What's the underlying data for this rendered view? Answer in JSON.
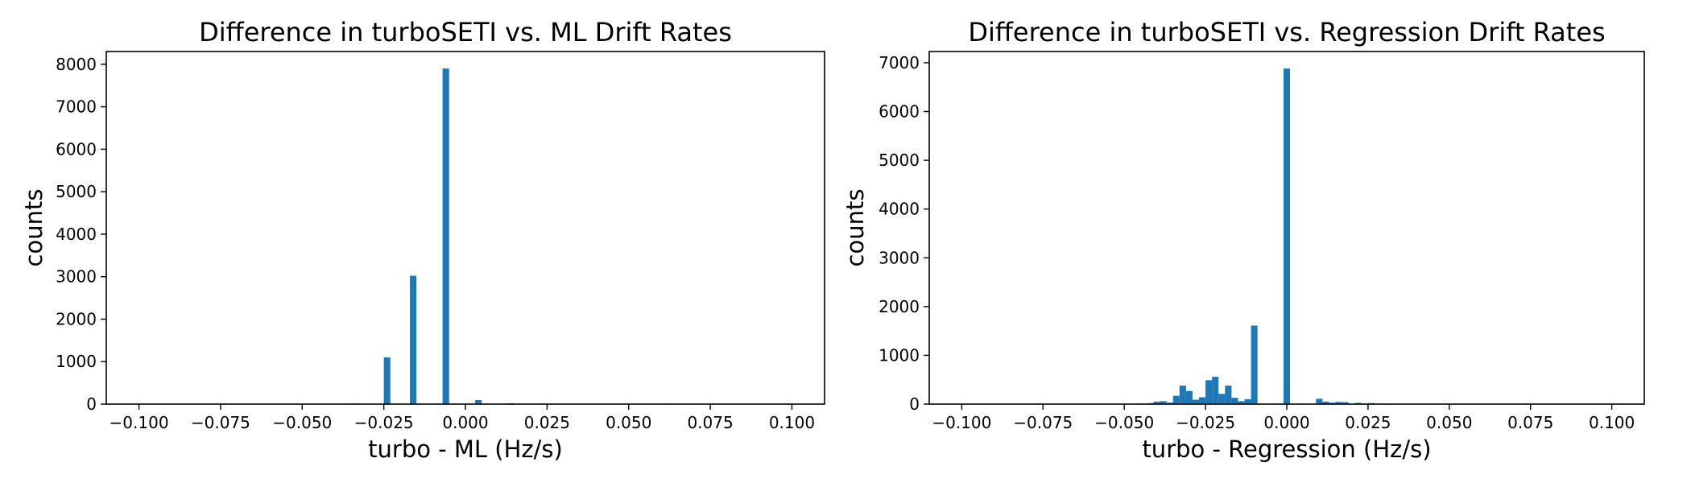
{
  "chart_data": [
    {
      "type": "bar",
      "title": "Difference in turboSETI vs. ML Drift Rates",
      "xlabel": "turbo - ML (Hz/s)",
      "ylabel": "counts",
      "xlim": [
        -0.11,
        0.11
      ],
      "ylim": [
        0,
        8300
      ],
      "xticks": [
        -0.1,
        -0.075,
        -0.05,
        -0.025,
        0.0,
        0.025,
        0.05,
        0.075,
        0.1
      ],
      "xtick_labels": [
        "−0.100",
        "−0.075",
        "−0.050",
        "−0.025",
        "0.000",
        "0.025",
        "0.050",
        "0.075",
        "0.100"
      ],
      "yticks": [
        0,
        1000,
        2000,
        3000,
        4000,
        5000,
        6000,
        7000,
        8000
      ],
      "ytick_labels": [
        "0",
        "1000",
        "2000",
        "3000",
        "4000",
        "5000",
        "6000",
        "7000",
        "8000"
      ],
      "bin_width": 0.002,
      "color": "#1f77b4",
      "grid": false,
      "bins": [
        {
          "x": -0.042,
          "count": 3
        },
        {
          "x": -0.034,
          "count": 15
        },
        {
          "x": -0.024,
          "count": 1100
        },
        {
          "x": -0.016,
          "count": 3020
        },
        {
          "x": -0.006,
          "count": 7900
        },
        {
          "x": 0.004,
          "count": 95
        },
        {
          "x": 0.014,
          "count": 20
        },
        {
          "x": 0.032,
          "count": 5
        },
        {
          "x": 0.06,
          "count": 12
        },
        {
          "x": 0.072,
          "count": 4
        }
      ]
    },
    {
      "type": "bar",
      "title": "Difference in turboSETI vs. Regression Drift Rates",
      "xlabel": "turbo - Regression (Hz/s)",
      "ylabel": "counts",
      "xlim": [
        -0.11,
        0.11
      ],
      "ylim": [
        0,
        7230
      ],
      "xticks": [
        -0.1,
        -0.075,
        -0.05,
        -0.025,
        0.0,
        0.025,
        0.05,
        0.075,
        0.1
      ],
      "xtick_labels": [
        "−0.100",
        "−0.075",
        "−0.050",
        "−0.025",
        "0.000",
        "0.025",
        "0.050",
        "0.075",
        "0.100"
      ],
      "yticks": [
        0,
        1000,
        2000,
        3000,
        4000,
        5000,
        6000,
        7000
      ],
      "ytick_labels": [
        "0",
        "1000",
        "2000",
        "3000",
        "4000",
        "5000",
        "6000",
        "7000"
      ],
      "bin_width": 0.002,
      "color": "#1f77b4",
      "grid": false,
      "bins": [
        {
          "x": -0.05,
          "count": 8
        },
        {
          "x": -0.046,
          "count": 12
        },
        {
          "x": -0.042,
          "count": 20
        },
        {
          "x": -0.04,
          "count": 50
        },
        {
          "x": -0.038,
          "count": 60
        },
        {
          "x": -0.036,
          "count": 30
        },
        {
          "x": -0.034,
          "count": 170
        },
        {
          "x": -0.032,
          "count": 380
        },
        {
          "x": -0.03,
          "count": 270
        },
        {
          "x": -0.028,
          "count": 90
        },
        {
          "x": -0.026,
          "count": 140
        },
        {
          "x": -0.024,
          "count": 490
        },
        {
          "x": -0.022,
          "count": 560
        },
        {
          "x": -0.02,
          "count": 210
        },
        {
          "x": -0.018,
          "count": 380
        },
        {
          "x": -0.016,
          "count": 130
        },
        {
          "x": -0.014,
          "count": 60
        },
        {
          "x": -0.012,
          "count": 100
        },
        {
          "x": -0.01,
          "count": 1610
        },
        {
          "x": 0.0,
          "count": 6880
        },
        {
          "x": 0.01,
          "count": 110
        },
        {
          "x": 0.012,
          "count": 50
        },
        {
          "x": 0.014,
          "count": 30
        },
        {
          "x": 0.016,
          "count": 45
        },
        {
          "x": 0.018,
          "count": 40
        },
        {
          "x": 0.022,
          "count": 25
        },
        {
          "x": 0.026,
          "count": 20
        },
        {
          "x": 0.03,
          "count": 10
        }
      ]
    }
  ]
}
